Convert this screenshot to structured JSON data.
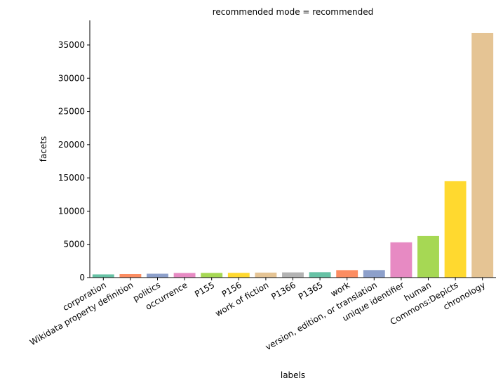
{
  "chart_data": {
    "type": "bar",
    "title": "recommended mode = recommended",
    "xlabel": "labels",
    "ylabel": "facets",
    "ylim": [
      0,
      38700
    ],
    "yticks": [
      0,
      5000,
      10000,
      15000,
      20000,
      25000,
      30000,
      35000
    ],
    "grid": false,
    "categories": [
      "corporation",
      "Wikidata property definition",
      "politics",
      "occurrence",
      "P155",
      "P156",
      "work of fiction",
      "P1366",
      "P1365",
      "work",
      "version, edition, or translation",
      "unique identifier",
      "human",
      "Commons:Depicts",
      "chronology"
    ],
    "values": [
      480,
      530,
      580,
      690,
      700,
      710,
      750,
      780,
      810,
      1120,
      1130,
      5300,
      6250,
      14500,
      36800
    ],
    "colors": [
      "#66c2a5",
      "#fc8d62",
      "#8da0cb",
      "#e78ac3",
      "#a6d854",
      "#ffd92f",
      "#e5c494",
      "#b3b3b3",
      "#66c2a5",
      "#fc8d62",
      "#8da0cb",
      "#e78ac3",
      "#a6d854",
      "#ffd92f",
      "#e5c494"
    ]
  }
}
